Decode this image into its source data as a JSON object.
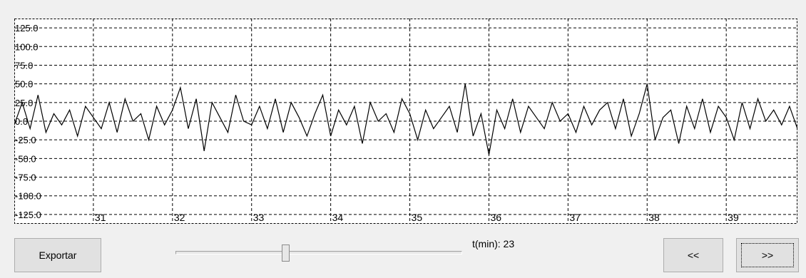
{
  "chart_data": {
    "type": "line",
    "title": "",
    "xlabel": "",
    "ylabel": "",
    "y_ticks": [
      "125.0",
      "100.0",
      "75.0",
      "50.0",
      "25.0",
      "0.0",
      "-25.0",
      "-50.0",
      "-75.0",
      "-100.0",
      "-125.0"
    ],
    "x_ticks": [
      "31",
      "32",
      "33",
      "34",
      "35",
      "36",
      "37",
      "38",
      "39"
    ],
    "ylim": [
      -137.5,
      137.5
    ],
    "xlim": [
      30.0,
      39.9
    ],
    "grid": true,
    "line_color": "#000000",
    "series": [
      {
        "x": [
          30.0,
          30.1,
          30.2,
          30.3,
          30.4,
          30.5,
          30.6,
          30.7,
          30.8,
          30.9,
          31.0,
          31.1,
          31.2,
          31.3,
          31.4,
          31.5,
          31.6,
          31.7,
          31.8,
          31.9,
          32.0,
          32.1,
          32.2,
          32.3,
          32.4,
          32.5,
          32.6,
          32.7,
          32.8,
          32.9,
          33.0,
          33.1,
          33.2,
          33.3,
          33.4,
          33.5,
          33.6,
          33.7,
          33.8,
          33.9,
          34.0,
          34.1,
          34.2,
          34.3,
          34.4,
          34.5,
          34.6,
          34.7,
          34.8,
          34.9,
          35.0,
          35.1,
          35.2,
          35.3,
          35.4,
          35.5,
          35.6,
          35.7,
          35.8,
          35.9,
          36.0,
          36.1,
          36.2,
          36.3,
          36.4,
          36.5,
          36.6,
          36.7,
          36.8,
          36.9,
          37.0,
          37.1,
          37.2,
          37.3,
          37.4,
          37.5,
          37.6,
          37.7,
          37.8,
          37.9,
          38.0,
          38.1,
          38.2,
          38.3,
          38.4,
          38.5,
          38.6,
          38.7,
          38.8,
          38.9,
          39.0,
          39.1,
          39.2,
          39.3,
          39.4,
          39.5,
          39.6,
          39.7,
          39.8,
          39.9
        ],
        "y": [
          -5,
          25,
          -10,
          35,
          -15,
          10,
          -5,
          15,
          -20,
          20,
          5,
          -10,
          25,
          -15,
          30,
          0,
          10,
          -25,
          20,
          -5,
          15,
          45,
          -10,
          30,
          -40,
          25,
          5,
          -15,
          35,
          0,
          -5,
          20,
          -10,
          30,
          -15,
          25,
          5,
          -20,
          10,
          35,
          -20,
          15,
          -5,
          20,
          -30,
          25,
          0,
          10,
          -15,
          30,
          10,
          -25,
          15,
          -10,
          5,
          20,
          -15,
          50,
          -20,
          10,
          -45,
          15,
          -10,
          30,
          -15,
          20,
          5,
          -10,
          25,
          0,
          10,
          -15,
          20,
          -5,
          15,
          25,
          -10,
          30,
          -20,
          10,
          50,
          -25,
          5,
          15,
          -30,
          20,
          -10,
          30,
          -15,
          20,
          5,
          -25,
          25,
          -10,
          30,
          0,
          15,
          -5,
          20,
          -10
        ]
      }
    ]
  },
  "controls": {
    "export_label": "Exportar",
    "prev_label": "<<",
    "next_label": ">>",
    "time_text": "t(min): 23",
    "slider_value_fraction": 0.38
  }
}
